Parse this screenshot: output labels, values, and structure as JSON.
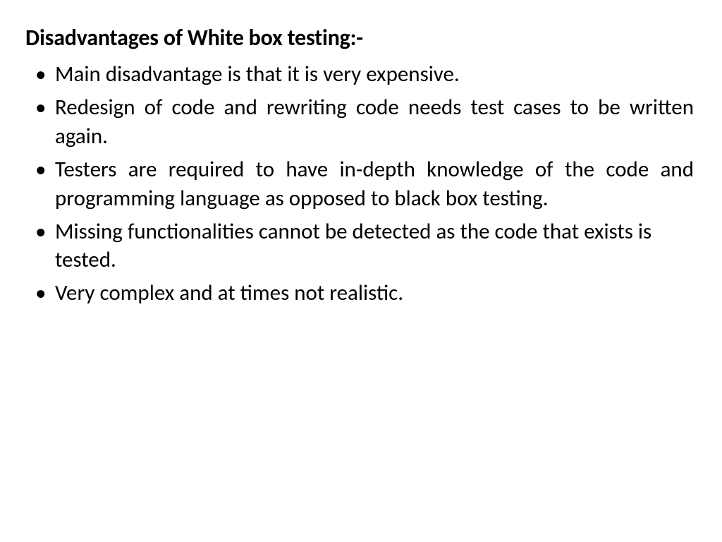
{
  "slide": {
    "title": "Disadvantages of White box testing:-",
    "title_fontsize": 32,
    "title_weight": 700,
    "body_fontsize": 31,
    "text_color": "#000000",
    "background_color": "#ffffff",
    "font_family": "Calibri",
    "bullets": [
      {
        "text": "Main disadvantage is that it is very expensive.",
        "justify": true
      },
      {
        "text": "Redesign of code and rewriting code needs test cases to be written again.",
        "justify": true
      },
      {
        "text": "Testers are required to have in-depth knowledge of the code and programming language as opposed to black box testing.",
        "justify": true
      },
      {
        "text": "Missing functionalities cannot be detected as the code that exists is tested.",
        "justify": false
      },
      {
        "text": "Very complex  and  at times not realistic.",
        "justify": false
      }
    ]
  }
}
